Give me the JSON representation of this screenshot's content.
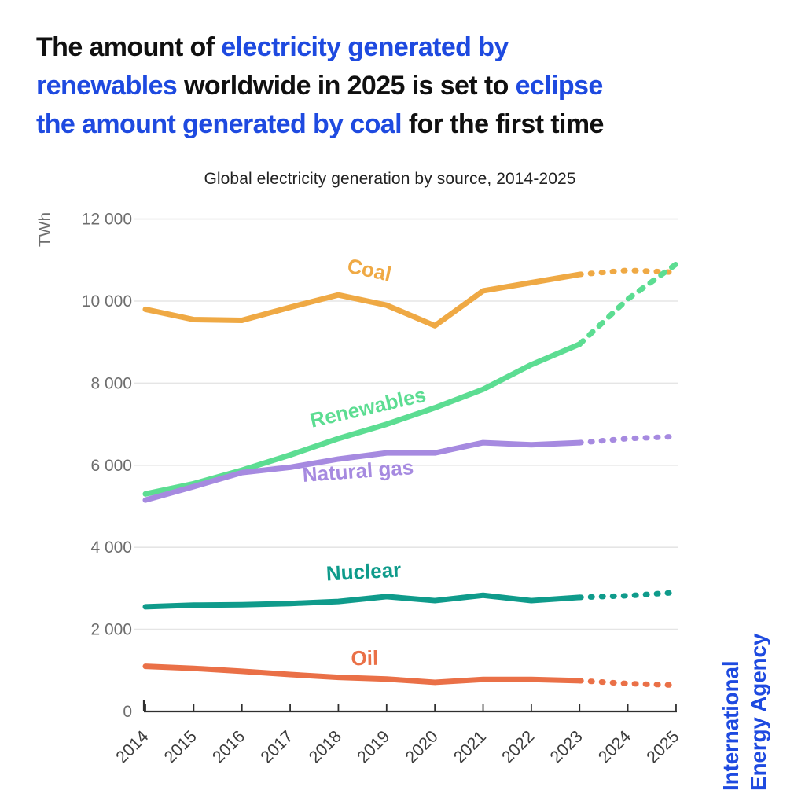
{
  "headline": {
    "lines": [
      [
        {
          "text": "The amount of ",
          "color": "dark"
        },
        {
          "text": "electricity generated by",
          "color": "blue"
        }
      ],
      [
        {
          "text": "renewables",
          "color": "blue"
        },
        {
          "text": " worldwide in 2025 is set to ",
          "color": "dark"
        },
        {
          "text": "eclipse",
          "color": "blue"
        }
      ],
      [
        {
          "text": "the amount generated by coal",
          "color": "blue"
        },
        {
          "text": " for the first time",
          "color": "dark"
        }
      ]
    ]
  },
  "chart_data": {
    "type": "line",
    "title": "Global electricity generation by source, 2014-2025",
    "ylabel": "TWh",
    "x": [
      "2014",
      "2015",
      "2016",
      "2017",
      "2018",
      "2019",
      "2020",
      "2021",
      "2022",
      "2023",
      "2024",
      "2025"
    ],
    "yticks": [
      0,
      2000,
      4000,
      6000,
      8000,
      10000,
      12000
    ],
    "ytick_labels": [
      "0",
      "2 000",
      "4 000",
      "6 000",
      "8 000",
      "10 000",
      "12 000"
    ],
    "ylim": [
      0,
      12400
    ],
    "grid": true,
    "legend_position": "inline-labels",
    "dotted_from_index": 9,
    "series": [
      {
        "name": "Coal",
        "color": "#efa944",
        "values": [
          9800,
          9550,
          9530,
          9850,
          10150,
          9900,
          9400,
          10250,
          10450,
          10650,
          10750,
          10700
        ]
      },
      {
        "name": "Renewables",
        "color": "#5cdd92",
        "values": [
          5300,
          5550,
          5880,
          6250,
          6650,
          7000,
          7400,
          7850,
          8450,
          8950,
          10050,
          10900
        ]
      },
      {
        "name": "Natural gas",
        "color": "#a68ae0",
        "values": [
          5150,
          5480,
          5820,
          5950,
          6150,
          6300,
          6300,
          6550,
          6500,
          6550,
          6650,
          6700
        ]
      },
      {
        "name": "Nuclear",
        "color": "#0f9b8b",
        "values": [
          2550,
          2590,
          2600,
          2630,
          2680,
          2800,
          2700,
          2830,
          2700,
          2780,
          2820,
          2900
        ]
      },
      {
        "name": "Oil",
        "color": "#ea7047",
        "values": [
          1100,
          1050,
          980,
          900,
          830,
          790,
          710,
          780,
          780,
          750,
          680,
          640
        ]
      }
    ]
  },
  "branding": {
    "line1": "International",
    "line2": "Energy Agency"
  },
  "colors": {
    "blue": "#1e4ae0",
    "dark": "#101010",
    "axis_text": "#6e6e6e",
    "year_text": "#3d3d3d",
    "gridline": "#e5e5e5",
    "axis_line": "#2f2f2f",
    "subtitle_text": "#222222"
  }
}
